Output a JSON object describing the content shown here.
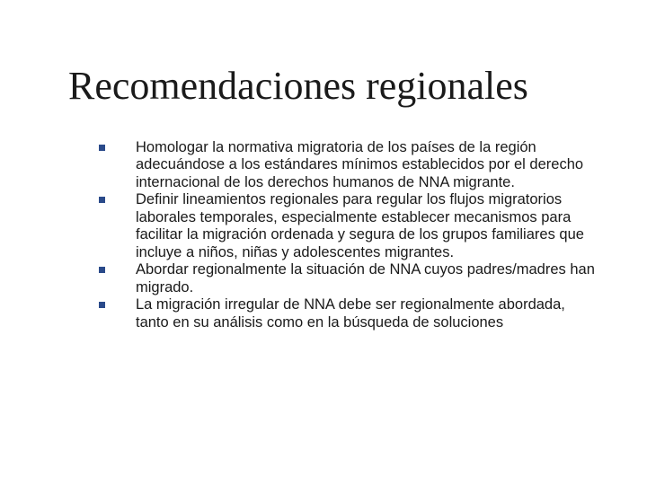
{
  "slide": {
    "title": "Recomendaciones regionales",
    "title_font": "Times New Roman",
    "title_fontsize": 44,
    "title_color": "#1a1a1a",
    "bullets": [
      "Homologar la normativa migratoria de los países de la región adecuándose a los estándares mínimos establecidos por el derecho internacional de los derechos humanos de NNA migrante.",
      "Definir lineamientos regionales para regular los flujos migratorios laborales temporales, especialmente establecer mecanismos para facilitar la migración ordenada y segura de los  grupos familiares que incluye a niños, niñas y adolescentes migrantes.",
      "Abordar regionalmente la situación de NNA cuyos padres/madres han migrado.",
      "La migración irregular de NNA debe ser regionalmente abordada, tanto en su análisis como en la búsqueda de soluciones"
    ],
    "bullet_marker_color": "#2a4a8a",
    "bullet_fontsize": 16.5,
    "bullet_color": "#1a1a1a",
    "background_color": "#ffffff"
  }
}
